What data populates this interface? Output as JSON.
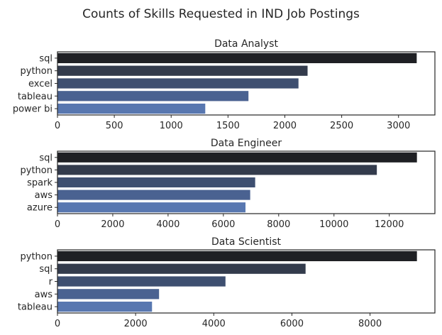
{
  "figure": {
    "title": "Counts of Skills Requested in IND Job Postings"
  },
  "colors": {
    "axis": "#262626",
    "bar_gradient": [
      "#1f2024",
      "#333b4c",
      "#3e4f70",
      "#4a6291",
      "#5877b0"
    ]
  },
  "chart_data": [
    {
      "type": "bar",
      "orientation": "horizontal",
      "title": "Data Analyst",
      "categories": [
        "sql",
        "python",
        "excel",
        "tableau",
        "power bi"
      ],
      "values": [
        3160,
        2200,
        2120,
        1680,
        1300
      ],
      "xlim": [
        0,
        3320
      ],
      "xticks": [
        0,
        500,
        1000,
        1500,
        2000,
        2500,
        3000
      ],
      "xlabel": "",
      "ylabel": ""
    },
    {
      "type": "bar",
      "orientation": "horizontal",
      "title": "Data Engineer",
      "categories": [
        "sql",
        "python",
        "spark",
        "aws",
        "azure"
      ],
      "values": [
        13000,
        11550,
        7150,
        6970,
        6800
      ],
      "xlim": [
        0,
        13650
      ],
      "xticks": [
        0,
        2000,
        4000,
        6000,
        8000,
        10000,
        12000
      ],
      "xlabel": "",
      "ylabel": ""
    },
    {
      "type": "bar",
      "orientation": "horizontal",
      "title": "Data Scientist",
      "categories": [
        "python",
        "sql",
        "r",
        "aws",
        "tableau"
      ],
      "values": [
        9200,
        6350,
        4300,
        2600,
        2420
      ],
      "xlim": [
        0,
        9660
      ],
      "xticks": [
        0,
        2000,
        4000,
        6000,
        8000
      ],
      "xlabel": "",
      "ylabel": ""
    }
  ]
}
